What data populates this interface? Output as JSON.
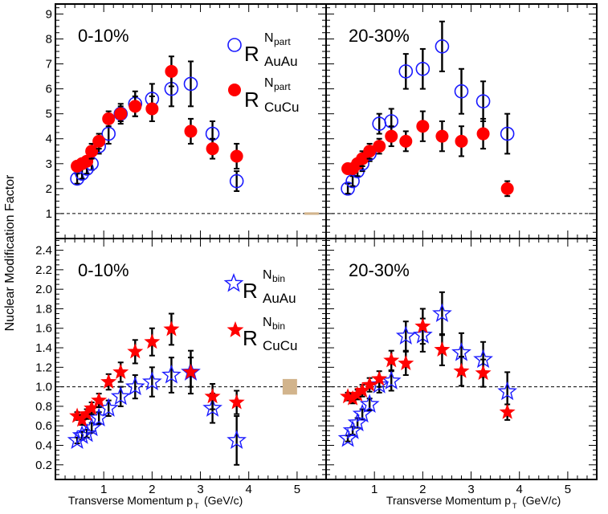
{
  "figure": {
    "y_axis_title": "Nuclear Modification Factor",
    "x_axis_title_main": "Transverse Momentum p",
    "x_axis_title_sub": "T",
    "x_axis_title_unit": "(GeV/c)"
  },
  "colors": {
    "auau": "#1a1aff",
    "cucu": "#ff0000",
    "error": "#000000",
    "syst_box": "#d2b48c",
    "unity_line": "#000000"
  },
  "legend_top": {
    "auau": {
      "R": "R",
      "sup": "N",
      "sup_sub": "part",
      "sub": "AuAu",
      "marker": "open-circle"
    },
    "cucu": {
      "R": "R",
      "sup": "N",
      "sup_sub": "part",
      "sub": "CuCu",
      "marker": "filled-circle"
    }
  },
  "legend_bottom": {
    "auau": {
      "R": "R",
      "sup": "N",
      "sup_sub": "bin",
      "sub": "AuAu",
      "marker": "open-star"
    },
    "cucu": {
      "R": "R",
      "sup": "N",
      "sup_sub": "bin",
      "sub": "CuCu",
      "marker": "filled-star"
    }
  },
  "chart_data": [
    {
      "type": "scatter",
      "panel": "top-left",
      "label": "0-10%",
      "xlim": [
        0,
        5.6
      ],
      "ylim": [
        0,
        9.4
      ],
      "xticks": [
        1,
        2,
        3,
        4,
        5
      ],
      "yticks": [
        1,
        2,
        3,
        4,
        5,
        6,
        7,
        8,
        9
      ],
      "reference_line_y": 1,
      "series": [
        {
          "name": "R_AuAu^Npart",
          "marker": "open-circle",
          "x": [
            0.45,
            0.55,
            0.65,
            0.75,
            0.9,
            1.1,
            1.35,
            1.65,
            2.0,
            2.4,
            2.8,
            3.25,
            3.75
          ],
          "y": [
            2.4,
            2.6,
            2.8,
            3.0,
            3.7,
            4.2,
            5.0,
            5.4,
            5.6,
            6.0,
            6.2,
            4.2,
            2.3
          ],
          "err": [
            0.2,
            0.2,
            0.2,
            0.25,
            0.3,
            0.4,
            0.4,
            0.5,
            0.6,
            0.7,
            0.9,
            0.5,
            0.4
          ]
        },
        {
          "name": "R_CuCu^Npart",
          "marker": "filled-circle",
          "x": [
            0.45,
            0.55,
            0.65,
            0.75,
            0.9,
            1.1,
            1.35,
            1.65,
            2.0,
            2.4,
            2.8,
            3.25,
            3.75
          ],
          "y": [
            2.9,
            3.0,
            3.1,
            3.5,
            3.9,
            4.8,
            5.0,
            5.3,
            5.2,
            6.7,
            4.3,
            3.6,
            3.3
          ],
          "err": [
            0.2,
            0.2,
            0.2,
            0.3,
            0.3,
            0.3,
            0.3,
            0.4,
            0.5,
            0.6,
            0.5,
            0.4,
            0.5
          ]
        }
      ],
      "syst_box": {
        "x": 5.3,
        "y": 1.0,
        "half_height": 0.05
      }
    },
    {
      "type": "scatter",
      "panel": "top-right",
      "label": "20-30%",
      "xlim": [
        0,
        5.6
      ],
      "ylim": [
        0,
        9.4
      ],
      "xticks": [
        1,
        2,
        3,
        4,
        5
      ],
      "yticks": [
        1,
        2,
        3,
        4,
        5,
        6,
        7,
        8,
        9
      ],
      "reference_line_y": 1,
      "series": [
        {
          "name": "R_AuAu^Npart",
          "marker": "open-circle",
          "x": [
            0.45,
            0.55,
            0.65,
            0.75,
            0.9,
            1.1,
            1.35,
            1.65,
            2.0,
            2.4,
            2.8,
            3.25,
            3.75
          ],
          "y": [
            2.0,
            2.3,
            2.7,
            3.0,
            3.4,
            4.6,
            4.7,
            6.7,
            6.8,
            7.7,
            5.9,
            5.5,
            4.2
          ],
          "err": [
            0.2,
            0.2,
            0.2,
            0.3,
            0.3,
            0.4,
            0.5,
            0.7,
            0.8,
            1.0,
            0.9,
            0.8,
            0.8
          ]
        },
        {
          "name": "R_CuCu^Npart",
          "marker": "filled-circle",
          "x": [
            0.45,
            0.55,
            0.65,
            0.75,
            0.9,
            1.1,
            1.35,
            1.65,
            2.0,
            2.4,
            2.8,
            3.25,
            3.75
          ],
          "y": [
            2.8,
            2.8,
            3.0,
            3.2,
            3.5,
            3.7,
            4.1,
            3.9,
            4.5,
            4.1,
            3.9,
            4.2,
            2.0
          ],
          "err": [
            0.2,
            0.2,
            0.2,
            0.3,
            0.3,
            0.3,
            0.4,
            0.4,
            0.6,
            0.6,
            0.6,
            0.6,
            0.3
          ]
        }
      ]
    },
    {
      "type": "scatter",
      "panel": "bottom-left",
      "label": "0-10%",
      "xlim": [
        0,
        5.6
      ],
      "ylim": [
        0.05,
        2.52
      ],
      "xticks": [
        1,
        2,
        3,
        4,
        5
      ],
      "yticks": [
        0.2,
        0.4,
        0.6,
        0.8,
        1.0,
        1.2,
        1.4,
        1.6,
        1.8,
        2.0,
        2.2,
        2.4
      ],
      "reference_line_y": 1,
      "series": [
        {
          "name": "R_AuAu^Nbin",
          "marker": "open-star",
          "x": [
            0.45,
            0.55,
            0.65,
            0.75,
            0.9,
            1.1,
            1.35,
            1.65,
            2.0,
            2.4,
            2.8,
            3.25,
            3.75
          ],
          "y": [
            0.45,
            0.5,
            0.52,
            0.58,
            0.68,
            0.78,
            0.9,
            1.0,
            1.05,
            1.12,
            1.15,
            0.78,
            0.45
          ],
          "err": [
            0.03,
            0.04,
            0.04,
            0.05,
            0.06,
            0.08,
            0.1,
            0.12,
            0.15,
            0.18,
            0.22,
            0.15,
            0.25
          ]
        },
        {
          "name": "R_CuCu^Nbin",
          "marker": "filled-star",
          "x": [
            0.45,
            0.55,
            0.65,
            0.75,
            0.9,
            1.1,
            1.35,
            1.65,
            2.0,
            2.4,
            2.8,
            3.25,
            3.75
          ],
          "y": [
            0.7,
            0.66,
            0.72,
            0.78,
            0.86,
            1.05,
            1.15,
            1.36,
            1.46,
            1.59,
            1.15,
            0.9,
            0.84
          ],
          "err": [
            0.04,
            0.05,
            0.05,
            0.06,
            0.07,
            0.08,
            0.1,
            0.12,
            0.14,
            0.16,
            0.15,
            0.13,
            0.12
          ]
        }
      ],
      "syst_box": {
        "x": 4.85,
        "y": 1.0,
        "half_height": 0.08
      }
    },
    {
      "type": "scatter",
      "panel": "bottom-right",
      "label": "20-30%",
      "xlim": [
        0,
        5.6
      ],
      "ylim": [
        0.05,
        2.52
      ],
      "xticks": [
        1,
        2,
        3,
        4,
        5
      ],
      "yticks": [
        0.2,
        0.4,
        0.6,
        0.8,
        1.0,
        1.2,
        1.4,
        1.6,
        1.8,
        2.0,
        2.2,
        2.4
      ],
      "reference_line_y": 1,
      "series": [
        {
          "name": "R_AuAu^Nbin",
          "marker": "open-star",
          "x": [
            0.45,
            0.55,
            0.65,
            0.75,
            0.9,
            1.1,
            1.35,
            1.65,
            2.0,
            2.4,
            2.8,
            3.25,
            3.75
          ],
          "y": [
            0.47,
            0.55,
            0.63,
            0.72,
            0.82,
            1.02,
            1.06,
            1.52,
            1.53,
            1.75,
            1.35,
            1.28,
            0.95
          ],
          "err": [
            0.03,
            0.04,
            0.05,
            0.05,
            0.06,
            0.08,
            0.1,
            0.15,
            0.17,
            0.22,
            0.2,
            0.18,
            0.2
          ]
        },
        {
          "name": "R_CuCu^Nbin",
          "marker": "filled-star",
          "x": [
            0.45,
            0.55,
            0.65,
            0.75,
            0.9,
            1.1,
            1.35,
            1.65,
            2.0,
            2.4,
            2.8,
            3.25,
            3.75
          ],
          "y": [
            0.9,
            0.88,
            0.92,
            0.96,
            1.02,
            1.08,
            1.27,
            1.24,
            1.62,
            1.38,
            1.16,
            1.14,
            0.74
          ],
          "err": [
            0.04,
            0.05,
            0.05,
            0.06,
            0.07,
            0.08,
            0.1,
            0.12,
            0.18,
            0.16,
            0.15,
            0.14,
            0.08
          ]
        }
      ]
    }
  ]
}
